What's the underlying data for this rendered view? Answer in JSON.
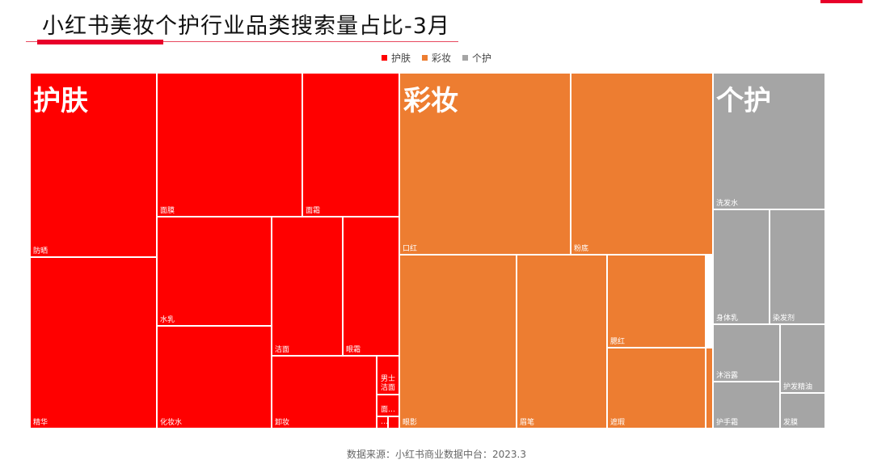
{
  "title": "小红书美妆个护行业品类搜索量占比-3月",
  "source": "数据来源：小红书商业数据中台：2023.3",
  "colors": {
    "护肤": "#ff0000",
    "彩妆": "#ed7d31",
    "个护": "#a5a5a5",
    "accent": "#e8002a"
  },
  "chart_data": {
    "type": "treemap",
    "title": "小红书美妆个护行业品类搜索量占比-3月",
    "legend": [
      "护肤",
      "彩妆",
      "个护"
    ],
    "legend_position": "top",
    "groups": [
      {
        "name": "护肤",
        "children": [
          {
            "name": "防晒",
            "value": 6.8
          },
          {
            "name": "精华",
            "value": 5.2
          },
          {
            "name": "面膜",
            "value": 4.5
          },
          {
            "name": "面霜",
            "value": 2.3
          },
          {
            "name": "水乳",
            "value": 2.8
          },
          {
            "name": "化妆水",
            "value": 2.6
          },
          {
            "name": "洁面",
            "value": 1.6
          },
          {
            "name": "眼霜",
            "value": 1.3
          },
          {
            "name": "卸妆",
            "value": 1.7
          },
          {
            "name": "男士洁面",
            "value": 0.2
          },
          {
            "name": "面…",
            "value": 0.15
          },
          {
            "name": "…",
            "value": 0.05
          },
          {
            "name": "",
            "value": 0.05
          }
        ]
      },
      {
        "name": "彩妆",
        "children": [
          {
            "name": "口红",
            "value": 6.9
          },
          {
            "name": "粉底",
            "value": 5.4
          },
          {
            "name": "眼影",
            "value": 4.4
          },
          {
            "name": "眉笔",
            "value": 3.3
          },
          {
            "name": "腮红",
            "value": 2.1
          },
          {
            "name": "遮瑕",
            "value": 1.8
          },
          {
            "name": "",
            "value": 0.1
          }
        ]
      },
      {
        "name": "个护",
        "children": [
          {
            "name": "洗发水",
            "value": 3.5
          },
          {
            "name": "身体乳",
            "value": 2.3
          },
          {
            "name": "染发剂",
            "value": 2.3
          },
          {
            "name": "沐浴露",
            "value": 1.2
          },
          {
            "name": "护手霜",
            "value": 0.95
          },
          {
            "name": "护发精油",
            "value": 1.2
          },
          {
            "name": "发膜",
            "value": 0.8
          }
        ]
      }
    ]
  }
}
